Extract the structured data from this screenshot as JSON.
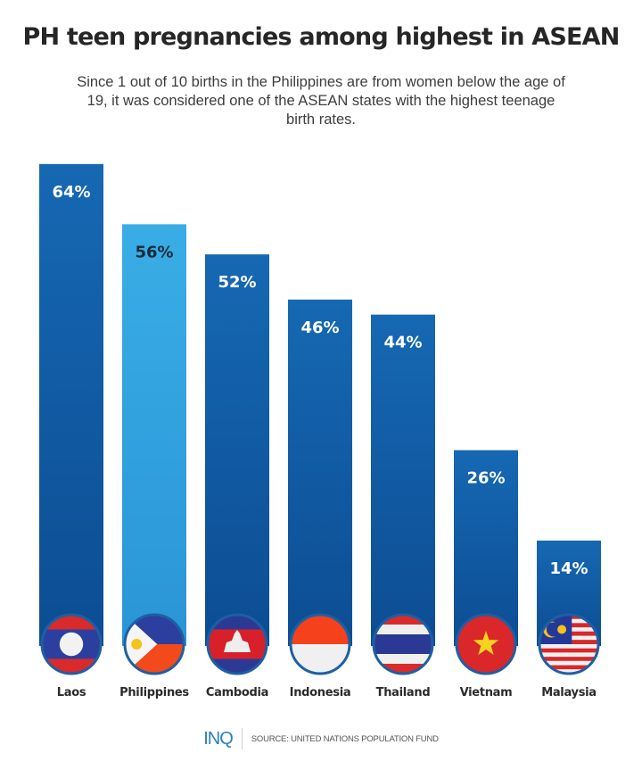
{
  "title": "PH teen pregnancies among highest in ASEAN",
  "subtitle": "Since 1 out of 10 births in the Philippines are from women below the age of 19, it was considered one of the ASEAN states with the highest teenage birth rates.",
  "footer": {
    "logo": "INQ",
    "source": "SOURCE: UNITED NATIONS POPULATION FUND"
  },
  "colors": {
    "bar": "#1565b0",
    "bar_highlight": "#35a9e3",
    "label_light": "#ffffff",
    "label_dark": "#1b2b3a"
  },
  "chart_data": {
    "type": "bar",
    "title": "PH teen pregnancies among highest in ASEAN",
    "categories": [
      "Laos",
      "Philippines",
      "Cambodia",
      "Indonesia",
      "Thailand",
      "Vietnam",
      "Malaysia"
    ],
    "values": [
      64,
      56,
      52,
      46,
      44,
      26,
      14
    ],
    "value_labels": [
      "64%",
      "56%",
      "52%",
      "46%",
      "44%",
      "26%",
      "14%"
    ],
    "highlight": "Philippines",
    "unit": "%",
    "ylim": [
      0,
      64
    ],
    "grid": false,
    "legend": "none",
    "category_icons": [
      "flag-laos-icon",
      "flag-philippines-icon",
      "flag-cambodia-icon",
      "flag-indonesia-icon",
      "flag-thailand-icon",
      "flag-vietnam-icon",
      "flag-malaysia-icon"
    ]
  }
}
